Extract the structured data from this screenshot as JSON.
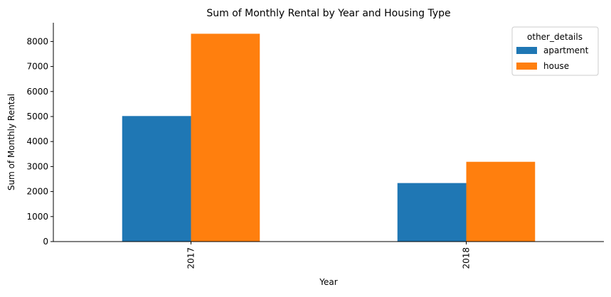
{
  "chart_data": {
    "type": "bar",
    "title": "Sum of Monthly Rental by Year and Housing Type",
    "xlabel": "Year",
    "ylabel": "Sum of Monthly Rental",
    "categories": [
      "2017",
      "2018"
    ],
    "series": [
      {
        "name": "apartment",
        "color": "#1f77b4",
        "values": [
          5020,
          2340
        ]
      },
      {
        "name": "house",
        "color": "#ff7f0e",
        "values": [
          8310,
          3190
        ]
      }
    ],
    "ylim": [
      0,
      8750
    ],
    "yticks": [
      0,
      1000,
      2000,
      3000,
      4000,
      5000,
      6000,
      7000,
      8000
    ],
    "legend": {
      "title": "other_details",
      "position": "top-right"
    },
    "grid": false,
    "xtick_rotation": "vertical"
  }
}
